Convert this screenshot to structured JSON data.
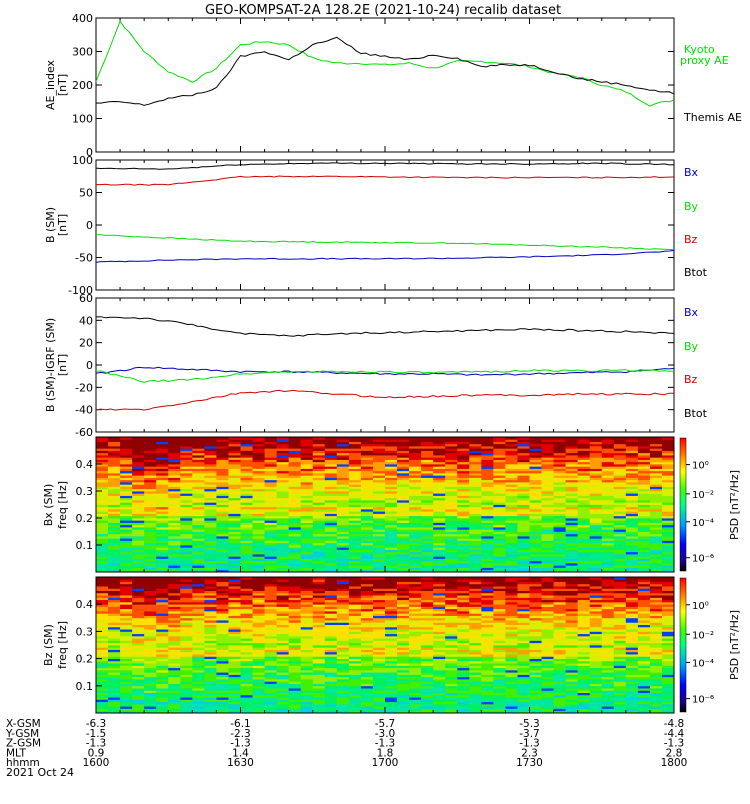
{
  "title": "GEO-KOMPSAT-2A 128.2E (2021-10-24) recalib dataset",
  "colors": {
    "black": "#000000",
    "green": "#00e000",
    "red": "#d00000",
    "blue": "#0000c0"
  },
  "chart_data": [
    {
      "type": "line",
      "panel": "ae",
      "ylabel": "AE_index [nT]",
      "ylim": [
        0,
        400
      ],
      "yticks": [
        0,
        100,
        200,
        300,
        400
      ],
      "x": [
        1600,
        1605,
        1610,
        1615,
        1620,
        1625,
        1630,
        1635,
        1640,
        1645,
        1650,
        1655,
        1700,
        1705,
        1710,
        1715,
        1720,
        1725,
        1730,
        1735,
        1740,
        1745,
        1750,
        1755,
        1800
      ],
      "series": [
        {
          "name": "Kyoto proxy AE",
          "color": "#00e000",
          "values": [
            210,
            390,
            300,
            240,
            210,
            250,
            320,
            330,
            320,
            280,
            265,
            265,
            260,
            265,
            250,
            270,
            270,
            265,
            255,
            235,
            225,
            200,
            180,
            140,
            155
          ]
        },
        {
          "name": "Themis AE",
          "color": "#000000",
          "values": [
            145,
            150,
            140,
            160,
            170,
            190,
            285,
            300,
            275,
            320,
            340,
            295,
            285,
            275,
            290,
            280,
            255,
            260,
            260,
            240,
            220,
            210,
            200,
            185,
            175
          ]
        }
      ]
    },
    {
      "type": "line",
      "panel": "b",
      "ylabel": "B (SM) [nT]",
      "ylim": [
        -100,
        100
      ],
      "yticks": [
        -100,
        -50,
        0,
        50,
        100
      ],
      "x": [
        1600,
        1615,
        1630,
        1645,
        1700,
        1715,
        1730,
        1745,
        1800
      ],
      "series": [
        {
          "name": "Bx",
          "color": "#0000c0",
          "values": [
            -57,
            -54,
            -52,
            -52,
            -52,
            -51,
            -49,
            -46,
            -40
          ]
        },
        {
          "name": "By",
          "color": "#00e000",
          "values": [
            -15,
            -20,
            -25,
            -26,
            -27,
            -28,
            -31,
            -34,
            -38
          ]
        },
        {
          "name": "Bz",
          "color": "#d00000",
          "values": [
            62,
            62,
            74,
            75,
            74,
            73,
            73,
            73,
            74
          ]
        },
        {
          "name": "Btot",
          "color": "#000000",
          "values": [
            87,
            86,
            93,
            95,
            95,
            94,
            94,
            95,
            93
          ]
        }
      ]
    },
    {
      "type": "line",
      "panel": "db",
      "ylabel": "B (SM)-IGRF (SM) [nT]",
      "ylim": [
        -60,
        60
      ],
      "yticks": [
        -60,
        -40,
        -20,
        0,
        20,
        40,
        60
      ],
      "x": [
        1600,
        1610,
        1620,
        1630,
        1640,
        1650,
        1700,
        1710,
        1720,
        1730,
        1740,
        1750,
        1800
      ],
      "series": [
        {
          "name": "Bx",
          "color": "#0000c0",
          "values": [
            -8,
            -2,
            -4,
            -6,
            -6,
            -7,
            -8,
            -8,
            -9,
            -8,
            -7,
            -6,
            -3
          ]
        },
        {
          "name": "By",
          "color": "#00e000",
          "values": [
            -5,
            -15,
            -13,
            -8,
            -6,
            -6,
            -6,
            -7,
            -6,
            -5,
            -5,
            -5,
            -5
          ]
        },
        {
          "name": "Bz",
          "color": "#d00000",
          "values": [
            -40,
            -40,
            -33,
            -25,
            -23,
            -26,
            -29,
            -28,
            -27,
            -27,
            -26,
            -26,
            -26
          ]
        },
        {
          "name": "Btot",
          "color": "#000000",
          "values": [
            43,
            42,
            36,
            28,
            26,
            28,
            29,
            30,
            31,
            32,
            31,
            30,
            28
          ]
        }
      ]
    },
    {
      "type": "heatmap",
      "panel": "bx-spec",
      "ylabel": "Bx (SM) freq [Hz]",
      "yticks": [
        0.1,
        0.2,
        0.3,
        0.4
      ],
      "colorbar_label": "PSD [nT²/Hz]",
      "colorbar_ticks": [
        "10⁰",
        "10⁻²",
        "10⁻⁴",
        "10⁻⁶"
      ]
    },
    {
      "type": "heatmap",
      "panel": "bz-spec",
      "ylabel": "Bz (SM) freq [Hz]",
      "yticks": [
        0.1,
        0.2,
        0.3,
        0.4
      ],
      "colorbar_label": "PSD [nT²/Hz]",
      "colorbar_ticks": [
        "10⁰",
        "10⁻²",
        "10⁻⁴",
        "10⁻⁶"
      ]
    }
  ],
  "axes_labels": {
    "ae_ylabel": "AE_index",
    "ae_yunit": "[nT]",
    "b_ylabel": "B (SM)",
    "b_yunit": "[nT]",
    "db_ylabel": "B (SM)-IGRF (SM)",
    "db_yunit": "[nT]",
    "bx_ylabel": "Bx (SM)",
    "bz_ylabel": "Bz (SM)",
    "freq_label": "freq [Hz]",
    "psd_label": "PSD [nT²/Hz]"
  },
  "legends": {
    "ae": [
      "Kyoto",
      "proxy AE",
      "Themis AE"
    ],
    "b": [
      "Bx",
      "By",
      "Bz",
      "Btot"
    ]
  },
  "ephemeris": {
    "rows": [
      {
        "label": "X-GSM",
        "values": [
          "-6.3",
          "-6.1",
          "-5.7",
          "-5.3",
          "-4.8"
        ]
      },
      {
        "label": "Y-GSM",
        "values": [
          "-1.5",
          "-2.3",
          "-3.0",
          "-3.7",
          "-4.4"
        ]
      },
      {
        "label": "Z-GSM",
        "values": [
          "-1.3",
          "-1.3",
          "-1.3",
          "-1.3",
          "-1.3"
        ]
      },
      {
        "label": "MLT",
        "values": [
          "0.9",
          "1.4",
          "1.8",
          "2.3",
          "2.8"
        ]
      },
      {
        "label": "hhmm",
        "values": [
          "1600",
          "1630",
          "1700",
          "1730",
          "1800"
        ]
      }
    ],
    "date": "2021 Oct 24"
  }
}
